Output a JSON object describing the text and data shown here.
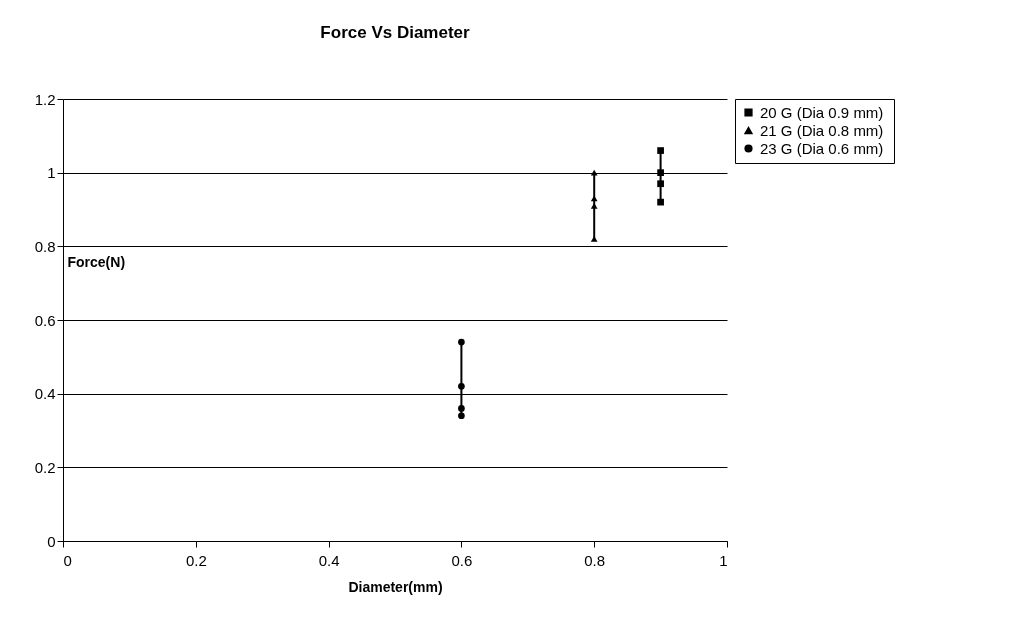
{
  "chart_data": {
    "type": "line",
    "title": "Force Vs Diameter",
    "xlabel": "Diameter(mm)",
    "ylabel": "Force(N)",
    "xlim": [
      0,
      1
    ],
    "xticks": [
      0,
      0.2,
      0.4,
      0.6,
      0.8,
      1
    ],
    "ylim": [
      0,
      1.2
    ],
    "yticks": [
      0,
      0.2,
      0.4,
      0.6,
      0.8,
      1,
      1.2
    ],
    "grid": "y",
    "legend": "right",
    "line_style": "solid",
    "series": [
      {
        "name": "20 G (Dia 0.9 mm)",
        "color": "#000000",
        "marker": "square",
        "x": [
          0.9,
          0.9,
          0.9,
          0.9
        ],
        "values": [
          1.06,
          1.0,
          0.97,
          0.92
        ]
      },
      {
        "name": "21 G (Dia 0.8 mm)",
        "color": "#000000",
        "marker": "triangle",
        "x": [
          0.8,
          0.8,
          0.8,
          0.8
        ],
        "values": [
          1.0,
          0.93,
          0.91,
          0.82
        ]
      },
      {
        "name": "23 G  (Dia 0.6 mm)",
        "color": "#000000",
        "marker": "circle",
        "x": [
          0.6,
          0.6,
          0.6,
          0.6
        ],
        "values": [
          0.54,
          0.42,
          0.36,
          0.34
        ]
      }
    ]
  }
}
